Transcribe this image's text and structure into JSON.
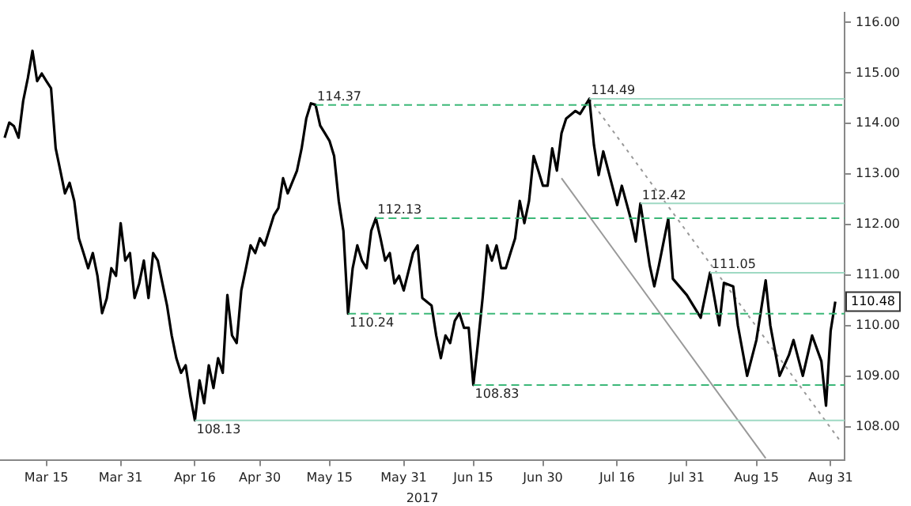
{
  "chart_data": {
    "type": "line",
    "xlabel": "2017",
    "xlim": [
      "2017-03-05",
      "2017-09-03"
    ],
    "ylim": [
      107.35,
      116.2
    ],
    "xticks": [
      {
        "value": "2017-03-15",
        "label": "Mar 15"
      },
      {
        "value": "2017-03-31",
        "label": "Mar 31"
      },
      {
        "value": "2017-04-16",
        "label": "Apr 16"
      },
      {
        "value": "2017-04-30",
        "label": "Apr 30"
      },
      {
        "value": "2017-05-15",
        "label": "May 15"
      },
      {
        "value": "2017-05-31",
        "label": "May 31"
      },
      {
        "value": "2017-06-15",
        "label": "Jun 15"
      },
      {
        "value": "2017-06-30",
        "label": "Jun 30"
      },
      {
        "value": "2017-07-16",
        "label": "Jul 16"
      },
      {
        "value": "2017-07-31",
        "label": "Jul 31"
      },
      {
        "value": "2017-08-15",
        "label": "Aug 15"
      },
      {
        "value": "2017-08-31",
        "label": "Aug 31"
      }
    ],
    "yticks": [
      {
        "value": 108,
        "label": "108.00"
      },
      {
        "value": 109,
        "label": "109.00"
      },
      {
        "value": 110,
        "label": "110.00"
      },
      {
        "value": 111,
        "label": "111.00"
      },
      {
        "value": 112,
        "label": "112.00"
      },
      {
        "value": 113,
        "label": "113.00"
      },
      {
        "value": 114,
        "label": "114.00"
      },
      {
        "value": 115,
        "label": "115.00"
      },
      {
        "value": 116,
        "label": "116.00"
      }
    ],
    "grid": false,
    "legend": false,
    "marker": "none",
    "series": [
      {
        "type": "line",
        "color": "#000000",
        "line_style": "solid",
        "x": [
          "2017-03-06",
          "2017-03-07",
          "2017-03-08",
          "2017-03-09",
          "2017-03-10",
          "2017-03-11",
          "2017-03-12",
          "2017-03-13",
          "2017-03-14",
          "2017-03-15",
          "2017-03-16",
          "2017-03-17",
          "2017-03-18",
          "2017-03-19",
          "2017-03-20",
          "2017-03-21",
          "2017-03-22",
          "2017-03-23",
          "2017-03-24",
          "2017-03-25",
          "2017-03-26",
          "2017-03-27",
          "2017-03-28",
          "2017-03-29",
          "2017-03-30",
          "2017-03-31",
          "2017-04-01",
          "2017-04-02",
          "2017-04-03",
          "2017-04-04",
          "2017-04-05",
          "2017-04-06",
          "2017-04-07",
          "2017-04-08",
          "2017-04-09",
          "2017-04-10",
          "2017-04-11",
          "2017-04-12",
          "2017-04-13",
          "2017-04-14",
          "2017-04-15",
          "2017-04-16",
          "2017-04-17",
          "2017-04-18",
          "2017-04-19",
          "2017-04-20",
          "2017-04-21",
          "2017-04-22",
          "2017-04-23",
          "2017-04-24",
          "2017-04-25",
          "2017-04-26",
          "2017-04-27",
          "2017-04-28",
          "2017-04-29",
          "2017-04-30",
          "2017-05-01",
          "2017-05-03",
          "2017-05-04",
          "2017-05-05",
          "2017-05-06",
          "2017-05-08",
          "2017-05-09",
          "2017-05-10",
          "2017-05-11",
          "2017-05-12",
          "2017-05-13",
          "2017-05-14",
          "2017-05-15",
          "2017-05-16",
          "2017-05-17",
          "2017-05-18",
          "2017-05-19",
          "2017-05-20",
          "2017-05-21",
          "2017-05-22",
          "2017-05-23",
          "2017-05-24",
          "2017-05-25",
          "2017-05-26",
          "2017-05-27",
          "2017-05-28",
          "2017-05-29",
          "2017-05-30",
          "2017-05-31",
          "2017-06-02",
          "2017-06-03",
          "2017-06-04",
          "2017-06-06",
          "2017-06-07",
          "2017-06-08",
          "2017-06-09",
          "2017-06-10",
          "2017-06-11",
          "2017-06-12",
          "2017-06-13",
          "2017-06-14",
          "2017-06-15",
          "2017-06-16",
          "2017-06-17",
          "2017-06-18",
          "2017-06-19",
          "2017-06-20",
          "2017-06-21",
          "2017-06-22",
          "2017-06-23",
          "2017-06-24",
          "2017-06-25",
          "2017-06-26",
          "2017-06-27",
          "2017-06-28",
          "2017-06-29",
          "2017-06-30",
          "2017-07-01",
          "2017-07-02",
          "2017-07-03",
          "2017-07-04",
          "2017-07-05",
          "2017-07-07",
          "2017-07-08",
          "2017-07-10",
          "2017-07-11",
          "2017-07-12",
          "2017-07-13",
          "2017-07-16",
          "2017-07-17",
          "2017-07-19",
          "2017-07-20",
          "2017-07-21",
          "2017-07-23",
          "2017-07-24",
          "2017-07-25",
          "2017-07-27",
          "2017-07-28",
          "2017-07-31",
          "2017-08-03",
          "2017-08-05",
          "2017-08-07",
          "2017-08-08",
          "2017-08-10",
          "2017-08-11",
          "2017-08-13",
          "2017-08-15",
          "2017-08-17",
          "2017-08-18",
          "2017-08-20",
          "2017-08-22",
          "2017-08-23",
          "2017-08-25",
          "2017-08-27",
          "2017-08-29",
          "2017-08-30",
          "2017-08-31",
          "2017-09-01"
        ],
        "values": [
          113.72,
          114.02,
          113.95,
          113.72,
          114.45,
          114.9,
          115.44,
          114.84,
          114.99,
          114.84,
          114.7,
          113.51,
          113.07,
          112.62,
          112.83,
          112.47,
          111.73,
          111.44,
          111.14,
          111.44,
          110.99,
          110.25,
          110.54,
          111.14,
          110.99,
          112.03,
          111.29,
          111.44,
          110.55,
          110.84,
          111.29,
          110.55,
          111.44,
          111.29,
          110.84,
          110.4,
          109.81,
          109.36,
          109.07,
          109.22,
          108.62,
          108.13,
          108.92,
          108.47,
          109.22,
          108.77,
          109.36,
          109.07,
          110.61,
          109.81,
          109.66,
          110.7,
          111.14,
          111.59,
          111.44,
          111.73,
          111.59,
          112.18,
          112.33,
          112.92,
          112.62,
          113.07,
          113.51,
          114.1,
          114.4,
          114.37,
          113.96,
          113.81,
          113.66,
          113.36,
          112.47,
          111.88,
          110.24,
          111.14,
          111.59,
          111.29,
          111.14,
          111.88,
          112.13,
          111.73,
          111.29,
          111.44,
          110.84,
          110.99,
          110.7,
          111.44,
          111.59,
          110.55,
          110.4,
          109.81,
          109.36,
          109.81,
          109.66,
          110.1,
          110.25,
          109.96,
          109.96,
          108.83,
          109.66,
          110.55,
          111.59,
          111.29,
          111.59,
          111.14,
          111.14,
          111.44,
          111.73,
          112.47,
          112.03,
          112.47,
          113.36,
          113.07,
          112.77,
          112.77,
          113.51,
          113.07,
          113.81,
          114.1,
          114.25,
          114.19,
          114.49,
          113.57,
          112.98,
          113.45,
          112.39,
          112.77,
          112.09,
          111.67,
          112.42,
          111.2,
          110.78,
          111.2,
          112.12,
          110.93,
          110.61,
          110.16,
          111.05,
          110.01,
          110.85,
          110.78,
          110.01,
          109.01,
          109.72,
          110.9,
          110.01,
          109.01,
          109.42,
          109.72,
          109.01,
          109.81,
          109.3,
          108.42,
          109.9,
          110.48
        ]
      },
      {
        "type": "line",
        "color": "#999999",
        "line_style": "solid",
        "x": [
          "2017-07-04",
          "2017-08-17"
        ],
        "values": [
          112.92,
          107.38
        ]
      },
      {
        "type": "line",
        "color": "#999999",
        "line_style": "dotted",
        "x": [
          "2017-07-10",
          "2017-09-02"
        ],
        "values": [
          114.49,
          107.73
        ]
      }
    ],
    "ref_lines": [
      {
        "axis": "y",
        "value": 114.37,
        "label": "114.37",
        "color": "#3cb878",
        "line_style": "dashed"
      },
      {
        "axis": "y",
        "value": 112.13,
        "label": "112.13",
        "color": "#3cb878",
        "line_style": "dashed"
      },
      {
        "axis": "y",
        "value": 110.24,
        "label": "110.24",
        "color": "#3cb878",
        "line_style": "dashed"
      },
      {
        "axis": "y",
        "value": 108.83,
        "label": "108.83",
        "color": "#3cb878",
        "line_style": "dashed"
      },
      {
        "axis": "y",
        "value": 108.13,
        "label": "108.13",
        "color": "#9fd9c3",
        "line_style": "solid"
      },
      {
        "axis": "y",
        "value": 114.49,
        "label": "114.49",
        "color": "#9fd9c3",
        "line_style": "solid"
      },
      {
        "axis": "y",
        "value": 112.42,
        "label": "112.42",
        "color": "#9fd9c3",
        "line_style": "solid"
      },
      {
        "axis": "y",
        "value": 111.05,
        "label": "111.05",
        "color": "#9fd9c3",
        "line_style": "solid"
      }
    ],
    "annotations": [
      {
        "text": "110.48",
        "x": "2017-09-01",
        "y": 110.48
      }
    ]
  }
}
